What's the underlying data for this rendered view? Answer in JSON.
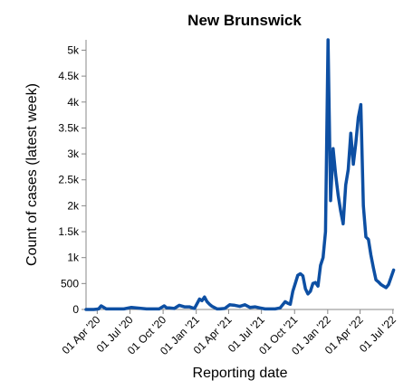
{
  "chart_data": {
    "type": "line",
    "title": "New Brunswick",
    "xlabel": "Reporting date",
    "ylabel": "Count of cases (latest week)",
    "ylim": [
      0,
      5200
    ],
    "xlim": [
      "2020-03-01",
      "2022-07-04"
    ],
    "y_ticks": [
      0,
      500,
      1000,
      1500,
      2000,
      2500,
      3000,
      3500,
      4000,
      4500,
      5000
    ],
    "y_tick_labels": [
      "0",
      "500",
      "1k",
      "1.5k",
      "2k",
      "2.5k",
      "3k",
      "3.5k",
      "4k",
      "4.5k",
      "5k"
    ],
    "x_ticks": [
      "2020-04-01",
      "2020-07-01",
      "2020-10-01",
      "2021-01-01",
      "2021-04-01",
      "2021-07-01",
      "2021-10-01",
      "2022-01-01",
      "2022-04-01",
      "2022-07-01"
    ],
    "x_tick_labels": [
      "01 Apr '20",
      "01 Jul '20",
      "01 Oct '20",
      "01 Jan '21",
      "01 Apr '21",
      "01 Jul '21",
      "01 Oct '21",
      "01 Jan '22",
      "01 Apr '22",
      "01 Jul '22"
    ],
    "grid": false,
    "color": "#0d4fa3",
    "series": [
      {
        "x": [
          "2020-03-01",
          "2020-03-22",
          "2020-03-29",
          "2020-04-05",
          "2020-04-12",
          "2020-04-26",
          "2020-05-31",
          "2020-06-14",
          "2020-07-05",
          "2020-08-16",
          "2020-09-20",
          "2020-10-04",
          "2020-10-11",
          "2020-10-18",
          "2020-11-01",
          "2020-11-15",
          "2020-11-29",
          "2020-12-13",
          "2020-12-27",
          "2021-01-10",
          "2021-01-17",
          "2021-01-24",
          "2021-01-31",
          "2021-02-07",
          "2021-02-14",
          "2021-02-28",
          "2021-03-07",
          "2021-03-21",
          "2021-04-04",
          "2021-04-18",
          "2021-05-02",
          "2021-05-16",
          "2021-05-30",
          "2021-06-13",
          "2021-06-27",
          "2021-07-11",
          "2021-07-25",
          "2021-08-08",
          "2021-08-22",
          "2021-08-29",
          "2021-09-05",
          "2021-09-12",
          "2021-09-19",
          "2021-09-26",
          "2021-10-03",
          "2021-10-10",
          "2021-10-17",
          "2021-10-24",
          "2021-10-31",
          "2021-11-07",
          "2021-11-14",
          "2021-11-21",
          "2021-11-28",
          "2021-12-05",
          "2021-12-12",
          "2021-12-19",
          "2021-12-26",
          "2022-01-02",
          "2022-01-09",
          "2022-01-16",
          "2022-01-23",
          "2022-01-30",
          "2022-02-06",
          "2022-02-13",
          "2022-02-20",
          "2022-02-27",
          "2022-03-06",
          "2022-03-13",
          "2022-03-20",
          "2022-03-27",
          "2022-04-03",
          "2022-04-10",
          "2022-04-17",
          "2022-04-24",
          "2022-05-01",
          "2022-05-08",
          "2022-05-15",
          "2022-05-22",
          "2022-05-29",
          "2022-06-05",
          "2022-06-12",
          "2022-06-19",
          "2022-06-26",
          "2022-07-03"
        ],
        "y": [
          0,
          0,
          5,
          10,
          70,
          10,
          10,
          10,
          40,
          10,
          10,
          70,
          30,
          30,
          20,
          80,
          50,
          50,
          20,
          200,
          170,
          240,
          150,
          100,
          60,
          10,
          10,
          20,
          90,
          80,
          60,
          90,
          40,
          50,
          30,
          10,
          10,
          10,
          30,
          90,
          150,
          120,
          100,
          350,
          500,
          660,
          690,
          650,
          400,
          300,
          350,
          500,
          520,
          450,
          850,
          1000,
          1500,
          5200,
          2100,
          3100,
          2600,
          2200,
          1900,
          1650,
          2400,
          2700,
          3400,
          2800,
          3200,
          3700,
          3950,
          2000,
          1400,
          1350,
          1050,
          800,
          570,
          530,
          480,
          450,
          420,
          480,
          620,
          760
        ]
      }
    ]
  }
}
